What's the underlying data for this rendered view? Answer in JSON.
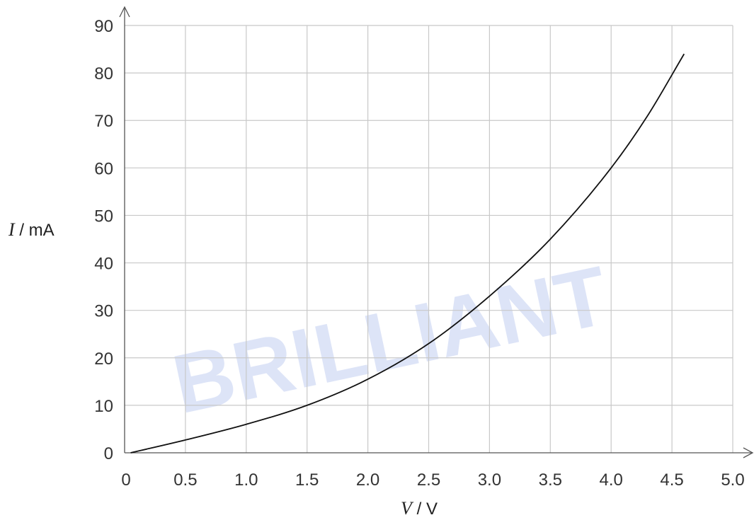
{
  "watermark": {
    "text": "BRILLIANT",
    "color": "#4a6fd6"
  },
  "chart_data": {
    "type": "line",
    "title": "",
    "xlabel": {
      "italic": "V",
      "rest": " / V"
    },
    "ylabel": {
      "italic": "I",
      "rest": " / mA"
    },
    "xlim": [
      0,
      5.0
    ],
    "ylim": [
      0,
      90
    ],
    "xticks": [
      "0",
      "0.5",
      "1.0",
      "1.5",
      "2.0",
      "2.5",
      "3.0",
      "3.5",
      "4.0",
      "4.5",
      "5.0"
    ],
    "yticks": [
      "0",
      "10",
      "20",
      "30",
      "40",
      "50",
      "60",
      "70",
      "80",
      "90"
    ],
    "grid": true,
    "legend": "none",
    "series": [
      {
        "color": "#111111",
        "x": [
          0.05,
          0.5,
          1.0,
          1.5,
          2.0,
          2.5,
          3.0,
          3.5,
          4.0,
          4.3,
          4.6
        ],
        "y": [
          0,
          2.7,
          6,
          10,
          15.5,
          23,
          33,
          45,
          60,
          71,
          84
        ]
      }
    ]
  }
}
